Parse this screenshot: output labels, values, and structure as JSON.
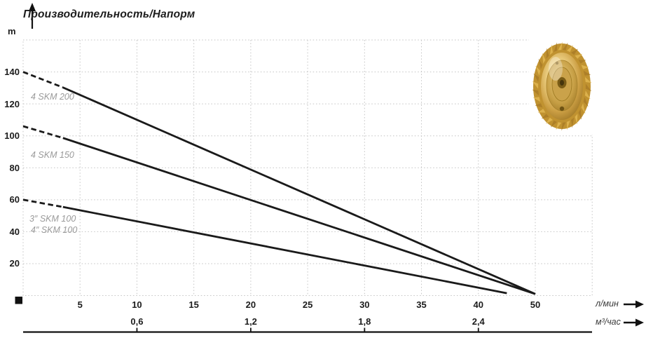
{
  "header": {
    "title": "Производительность/Напорм",
    "y_unit": "m"
  },
  "axes": {
    "primary_unit": "л/мин",
    "secondary_unit": "м³/час"
  },
  "series_labels": {
    "s1": "4 SKM 200",
    "s2": "4 SKM 150",
    "s3a": "3″ SKM 100",
    "s3b": "4″ SKM 100"
  },
  "icons": {
    "impeller": "brass-pump-impeller-photo",
    "y_axis_arrow": "up-arrow",
    "flow_axis_arrows": "right-arrow",
    "origin_marker": "black-square"
  },
  "colors": {
    "line": "#1a1a1a",
    "grid": "#c6c6c6",
    "series_label": "#9a9a9a",
    "impeller_gold_light": "#f7e7ae",
    "impeller_gold_mid": "#cda045",
    "impeller_gold_dark": "#8a6820"
  },
  "chart_data": {
    "type": "line",
    "title": "Производительность/Напорм",
    "ylabel": "m",
    "xlabel": "л/мин",
    "xlabel_secondary": "м³/час",
    "y_ticks": [
      20,
      40,
      60,
      80,
      100,
      120,
      140
    ],
    "ylim": [
      0,
      160
    ],
    "x_ticks": [
      "5",
      "10",
      "15",
      "20",
      "25",
      "30",
      "35",
      "40",
      "50"
    ],
    "x_ticks_secondary": [
      "0,6",
      "1,2",
      "1,8",
      "2,4"
    ],
    "x_ticks_secondary_at_lmin": [
      10,
      20,
      30,
      40
    ],
    "grid": true,
    "legend_position": "inline-left-of-curves",
    "series": [
      {
        "name": "4 SKM 200",
        "points": [
          [
            0,
            140
          ],
          [
            50,
            1
          ]
        ],
        "dashed_until_x": 3.5
      },
      {
        "name": "4 SKM 150",
        "points": [
          [
            0,
            106
          ],
          [
            50,
            1
          ]
        ],
        "dashed_until_x": 3.5
      },
      {
        "name": "3″/4″ SKM 100",
        "points": [
          [
            0,
            60
          ],
          [
            45,
            1.5
          ]
        ],
        "dashed_until_x": 3.5
      }
    ]
  }
}
